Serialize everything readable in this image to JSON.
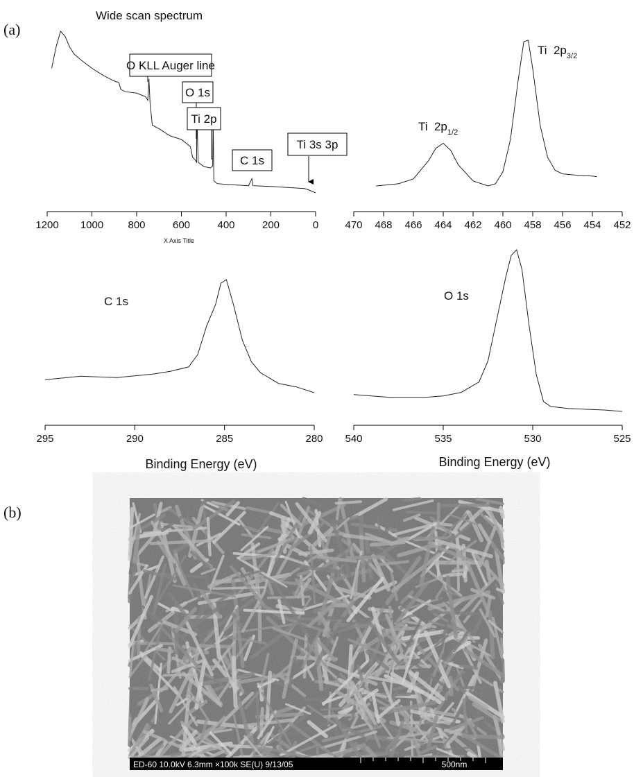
{
  "panel_labels": [
    "(a)",
    "(b)"
  ],
  "chart_data": [
    {
      "type": "line",
      "title": "Wide scan spectrum",
      "xlabel": "X Axis Title",
      "x": [
        1180,
        1160,
        1140,
        1120,
        1100,
        1080,
        1050,
        1000,
        950,
        900,
        880,
        870,
        850,
        800,
        760,
        750,
        745,
        740,
        730,
        700,
        650,
        600,
        560,
        550,
        540,
        532,
        531,
        525,
        500,
        470,
        460,
        458,
        455,
        440,
        400,
        300,
        285,
        280,
        200,
        100,
        50,
        38,
        0
      ],
      "values": [
        205,
        235,
        257,
        250,
        235,
        225,
        217,
        205,
        195,
        187,
        185,
        175,
        172,
        170,
        165,
        160,
        190,
        155,
        125,
        120,
        110,
        105,
        95,
        80,
        77,
        73,
        140,
        73,
        67,
        65,
        68,
        135,
        47,
        43,
        42,
        40,
        50,
        40,
        39,
        37,
        36,
        35,
        30
      ],
      "xlim": [
        1200,
        0
      ],
      "xticks": [
        1200,
        1000,
        800,
        600,
        400,
        200,
        0
      ],
      "annotations": [
        "O KLL Auger line",
        "O 1s",
        "Ti 2p",
        "C 1s",
        "Ti 3s  3p"
      ]
    },
    {
      "type": "line",
      "x": [
        468.5,
        467,
        466,
        465,
        464.5,
        464,
        463.5,
        463,
        462,
        461,
        460.5,
        460,
        459.5,
        459,
        458.6,
        458.3,
        458,
        457.5,
        457,
        456.5,
        456,
        455,
        454,
        453.7
      ],
      "values": [
        40,
        43,
        50,
        75,
        93,
        100,
        90,
        70,
        47,
        40,
        43,
        60,
        105,
        185,
        243,
        245,
        205,
        125,
        80,
        62,
        57,
        55,
        54,
        53
      ],
      "xlim": [
        470,
        452
      ],
      "xticks": [
        470,
        468,
        466,
        464,
        462,
        460,
        458,
        456,
        454,
        452
      ],
      "annotations": [
        {
          "text": "Ti  2p",
          "sub": "1/2"
        },
        {
          "text": "Ti  2p",
          "sub": "3/2"
        }
      ]
    },
    {
      "type": "line",
      "xlabel": "Binding Energy (eV)",
      "x": [
        295,
        293,
        291,
        289,
        288,
        287,
        286.5,
        286,
        285.5,
        285.2,
        284.9,
        284.5,
        284,
        283.5,
        283,
        282,
        281,
        280
      ],
      "values": [
        68,
        73,
        71,
        76,
        80,
        86,
        103,
        143,
        173,
        203,
        208,
        173,
        123,
        93,
        78,
        63,
        58,
        50
      ],
      "xlim": [
        295,
        280
      ],
      "xticks": [
        295,
        290,
        285,
        280
      ],
      "annotations": [
        "C 1s"
      ]
    },
    {
      "type": "line",
      "xlabel": "Binding Energy (eV)",
      "x": [
        540,
        538,
        536,
        535,
        534,
        533,
        532.5,
        532,
        531.5,
        531.2,
        530.9,
        530.6,
        530.2,
        529.8,
        529.4,
        529,
        528,
        526,
        525
      ],
      "values": [
        45,
        41,
        41,
        43,
        48,
        63,
        93,
        153,
        213,
        243,
        251,
        223,
        143,
        73,
        35,
        28,
        25,
        23,
        21
      ],
      "xlim": [
        540,
        525
      ],
      "xticks": [
        540,
        535,
        530,
        525
      ],
      "annotations": [
        "O 1s"
      ]
    }
  ],
  "sem_footer": {
    "info": "ED-60 10.0kV 6.3mm ×100k SE(U) 9/13/05",
    "scale": "500nm"
  }
}
